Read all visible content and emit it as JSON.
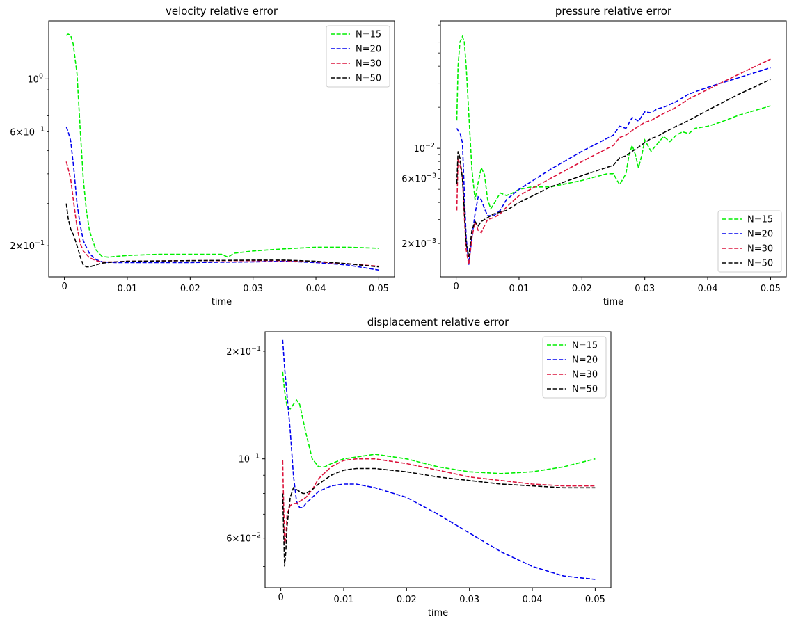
{
  "figure": {
    "title": "",
    "xlabel": "time"
  },
  "chart_data": [
    {
      "type": "line",
      "title": "velocity relative error",
      "xlabel": "time",
      "ylabel": "",
      "yscale": "log",
      "xlim": [
        -0.0025,
        0.0525
      ],
      "ylim": [
        0.148,
        1.75
      ],
      "legend_position": "top-right",
      "xticks": [
        0,
        0.01,
        0.02,
        0.03,
        0.04,
        0.05
      ],
      "xtick_labels": [
        "0",
        "0.01",
        "0.02",
        "0.03",
        "0.04",
        "0.05"
      ],
      "yticks_major": [
        1.0
      ],
      "yticks_major_labels": [
        "10^0"
      ],
      "yticks_minor": [
        0.2,
        0.3,
        0.4,
        0.5,
        0.6,
        0.7,
        0.8,
        0.9,
        2.0
      ],
      "yticks_minor_labels": {
        "0.2": "2×10^-1",
        "0.6": "6×10^-1"
      },
      "series": [
        {
          "name": "N=15",
          "color": "#00ee00",
          "x": [
            0.0003,
            0.0006,
            0.001,
            0.0014,
            0.002,
            0.0025,
            0.003,
            0.0035,
            0.004,
            0.005,
            0.006,
            0.007,
            0.008,
            0.01,
            0.015,
            0.02,
            0.025,
            0.026,
            0.027,
            0.03,
            0.035,
            0.04,
            0.045,
            0.05
          ],
          "y": [
            1.52,
            1.54,
            1.52,
            1.4,
            1.05,
            0.62,
            0.38,
            0.28,
            0.23,
            0.192,
            0.18,
            0.179,
            0.18,
            0.182,
            0.184,
            0.184,
            0.184,
            0.179,
            0.186,
            0.19,
            0.194,
            0.197,
            0.197,
            0.195
          ]
        },
        {
          "name": "N=20",
          "color": "#0000ee",
          "x": [
            0.0003,
            0.0006,
            0.001,
            0.0015,
            0.002,
            0.0025,
            0.003,
            0.004,
            0.005,
            0.006,
            0.008,
            0.01,
            0.02,
            0.03,
            0.035,
            0.04,
            0.045,
            0.05
          ],
          "y": [
            0.63,
            0.6,
            0.55,
            0.42,
            0.3,
            0.245,
            0.21,
            0.185,
            0.175,
            0.171,
            0.17,
            0.17,
            0.17,
            0.171,
            0.172,
            0.17,
            0.166,
            0.158
          ]
        },
        {
          "name": "N=30",
          "color": "#dc143c",
          "x": [
            0.0003,
            0.0006,
            0.001,
            0.0015,
            0.002,
            0.0025,
            0.003,
            0.004,
            0.005,
            0.006,
            0.008,
            0.01,
            0.02,
            0.03,
            0.035,
            0.04,
            0.045,
            0.05
          ],
          "y": [
            0.45,
            0.42,
            0.38,
            0.3,
            0.24,
            0.205,
            0.19,
            0.178,
            0.173,
            0.171,
            0.171,
            0.172,
            0.173,
            0.173,
            0.173,
            0.171,
            0.168,
            0.164
          ]
        },
        {
          "name": "N=50",
          "color": "#000000",
          "x": [
            0.0003,
            0.0006,
            0.001,
            0.0015,
            0.002,
            0.0025,
            0.003,
            0.0035,
            0.004,
            0.005,
            0.006,
            0.008,
            0.01,
            0.02,
            0.03,
            0.035,
            0.04,
            0.045,
            0.05
          ],
          "y": [
            0.3,
            0.26,
            0.235,
            0.22,
            0.2,
            0.18,
            0.166,
            0.163,
            0.163,
            0.166,
            0.169,
            0.171,
            0.172,
            0.173,
            0.174,
            0.174,
            0.172,
            0.168,
            0.163
          ]
        }
      ]
    },
    {
      "type": "line",
      "title": "pressure relative error",
      "xlabel": "time",
      "ylabel": "",
      "yscale": "log",
      "xlim": [
        -0.0025,
        0.0525
      ],
      "ylim": [
        0.00114,
        0.086
      ],
      "legend_position": "bottom-right",
      "xticks": [
        0,
        0.01,
        0.02,
        0.03,
        0.04,
        0.05
      ],
      "xtick_labels": [
        "0",
        "0.01",
        "0.02",
        "0.03",
        "0.04",
        "0.05"
      ],
      "yticks_major": [
        0.01
      ],
      "yticks_major_labels": [
        "10^-2"
      ],
      "yticks_minor": [
        0.002,
        0.003,
        0.004,
        0.005,
        0.006,
        0.007,
        0.008,
        0.009,
        0.02,
        0.03,
        0.04,
        0.05,
        0.06,
        0.07,
        0.08
      ],
      "yticks_minor_labels": {
        "0.002": "2×10^-3",
        "0.006": "6×10^-3"
      },
      "series": [
        {
          "name": "N=15",
          "color": "#00ee00",
          "x": [
            0.0001,
            0.0003,
            0.0006,
            0.001,
            0.0013,
            0.0016,
            0.002,
            0.0025,
            0.003,
            0.0035,
            0.004,
            0.0045,
            0.005,
            0.0055,
            0.006,
            0.007,
            0.008,
            0.009,
            0.01,
            0.012,
            0.015,
            0.02,
            0.024,
            0.025,
            0.026,
            0.027,
            0.0275,
            0.028,
            0.0285,
            0.029,
            0.0295,
            0.03,
            0.031,
            0.032,
            0.033,
            0.034,
            0.035,
            0.036,
            0.037,
            0.038,
            0.04,
            0.042,
            0.045,
            0.05
          ],
          "y": [
            0.016,
            0.04,
            0.06,
            0.066,
            0.06,
            0.04,
            0.018,
            0.007,
            0.0042,
            0.0056,
            0.0072,
            0.0064,
            0.0042,
            0.0036,
            0.0039,
            0.0047,
            0.0045,
            0.0047,
            0.005,
            0.0052,
            0.0052,
            0.0058,
            0.0065,
            0.0065,
            0.0054,
            0.0065,
            0.009,
            0.0105,
            0.009,
            0.0072,
            0.0088,
            0.0115,
            0.0095,
            0.0108,
            0.0122,
            0.0112,
            0.0125,
            0.0132,
            0.0128,
            0.014,
            0.0145,
            0.0155,
            0.0175,
            0.0205
          ]
        },
        {
          "name": "N=20",
          "color": "#0000ee",
          "x": [
            0.0001,
            0.0003,
            0.0006,
            0.001,
            0.0013,
            0.0016,
            0.002,
            0.0025,
            0.003,
            0.0035,
            0.004,
            0.0045,
            0.005,
            0.006,
            0.007,
            0.008,
            0.01,
            0.015,
            0.02,
            0.025,
            0.026,
            0.027,
            0.028,
            0.029,
            0.03,
            0.031,
            0.032,
            0.033,
            0.035,
            0.037,
            0.04,
            0.045,
            0.05
          ],
          "y": [
            0.014,
            0.0135,
            0.013,
            0.011,
            0.0048,
            0.0022,
            0.0014,
            0.0022,
            0.0033,
            0.0044,
            0.0042,
            0.0036,
            0.0032,
            0.0032,
            0.0035,
            0.0042,
            0.005,
            0.007,
            0.0095,
            0.0125,
            0.0145,
            0.014,
            0.0168,
            0.0158,
            0.0185,
            0.0182,
            0.0195,
            0.02,
            0.022,
            0.025,
            0.028,
            0.033,
            0.039
          ]
        },
        {
          "name": "N=30",
          "color": "#dc143c",
          "x": [
            0.0001,
            0.0003,
            0.0006,
            0.001,
            0.0013,
            0.0016,
            0.002,
            0.0025,
            0.003,
            0.0035,
            0.004,
            0.0045,
            0.005,
            0.006,
            0.007,
            0.008,
            0.01,
            0.015,
            0.02,
            0.025,
            0.026,
            0.027,
            0.028,
            0.029,
            0.03,
            0.031,
            0.032,
            0.033,
            0.035,
            0.037,
            0.04,
            0.045,
            0.05
          ],
          "y": [
            0.0035,
            0.0085,
            0.0075,
            0.0062,
            0.0032,
            0.0018,
            0.0014,
            0.0022,
            0.0029,
            0.0025,
            0.0024,
            0.0027,
            0.003,
            0.0031,
            0.0033,
            0.0037,
            0.0045,
            0.006,
            0.008,
            0.0105,
            0.012,
            0.0125,
            0.0135,
            0.0145,
            0.0155,
            0.016,
            0.017,
            0.018,
            0.02,
            0.023,
            0.027,
            0.035,
            0.045
          ]
        },
        {
          "name": "N=50",
          "color": "#000000",
          "x": [
            0.0001,
            0.0003,
            0.0006,
            0.001,
            0.0013,
            0.0016,
            0.002,
            0.0025,
            0.003,
            0.0035,
            0.004,
            0.005,
            0.006,
            0.008,
            0.01,
            0.015,
            0.02,
            0.025,
            0.026,
            0.027,
            0.028,
            0.029,
            0.03,
            0.031,
            0.032,
            0.033,
            0.035,
            0.037,
            0.04,
            0.045,
            0.05
          ],
          "y": [
            0.0055,
            0.0095,
            0.0085,
            0.006,
            0.0035,
            0.002,
            0.0016,
            0.0025,
            0.0029,
            0.0027,
            0.0029,
            0.0031,
            0.0033,
            0.0035,
            0.004,
            0.0052,
            0.0063,
            0.0075,
            0.0085,
            0.0088,
            0.0095,
            0.0102,
            0.011,
            0.0118,
            0.0122,
            0.013,
            0.0145,
            0.016,
            0.019,
            0.025,
            0.032
          ]
        }
      ]
    },
    {
      "type": "line",
      "title": "displacement relative error",
      "xlabel": "time",
      "ylabel": "",
      "yscale": "log",
      "xlim": [
        -0.0025,
        0.0525
      ],
      "ylim": [
        0.0436,
        0.2267
      ],
      "legend_position": "top-right",
      "xticks": [
        0,
        0.01,
        0.02,
        0.03,
        0.04,
        0.05
      ],
      "xtick_labels": [
        "0",
        "0.01",
        "0.02",
        "0.03",
        "0.04",
        "0.05"
      ],
      "yticks_major": [
        0.1
      ],
      "yticks_major_labels": [
        "10^-1"
      ],
      "yticks_minor": [
        0.05,
        0.06,
        0.07,
        0.08,
        0.09,
        0.2
      ],
      "yticks_minor_labels": {
        "0.06": "6×10^-2",
        "0.2": "2×10^-1"
      },
      "series": [
        {
          "name": "N=15",
          "color": "#00ee00",
          "x": [
            0.0003,
            0.0006,
            0.001,
            0.0015,
            0.002,
            0.0025,
            0.003,
            0.004,
            0.005,
            0.006,
            0.007,
            0.008,
            0.01,
            0.015,
            0.02,
            0.025,
            0.03,
            0.035,
            0.04,
            0.045,
            0.05
          ],
          "y": [
            0.175,
            0.155,
            0.14,
            0.138,
            0.142,
            0.146,
            0.142,
            0.118,
            0.1,
            0.095,
            0.095,
            0.097,
            0.1,
            0.103,
            0.1,
            0.095,
            0.092,
            0.091,
            0.092,
            0.095,
            0.1
          ]
        },
        {
          "name": "N=20",
          "color": "#0000ee",
          "x": [
            0.0003,
            0.0006,
            0.001,
            0.0015,
            0.002,
            0.0025,
            0.003,
            0.0035,
            0.004,
            0.005,
            0.006,
            0.008,
            0.01,
            0.012,
            0.015,
            0.02,
            0.025,
            0.03,
            0.035,
            0.04,
            0.045,
            0.05
          ],
          "y": [
            0.215,
            0.18,
            0.15,
            0.12,
            0.09,
            0.076,
            0.073,
            0.073,
            0.075,
            0.078,
            0.081,
            0.084,
            0.085,
            0.085,
            0.083,
            0.078,
            0.07,
            0.062,
            0.055,
            0.05,
            0.047,
            0.046
          ]
        },
        {
          "name": "N=30",
          "color": "#dc143c",
          "x": [
            0.0003,
            0.0004,
            0.0006,
            0.0008,
            0.001,
            0.0015,
            0.002,
            0.0025,
            0.003,
            0.004,
            0.005,
            0.006,
            0.008,
            0.01,
            0.012,
            0.015,
            0.02,
            0.025,
            0.03,
            0.035,
            0.04,
            0.045,
            0.05
          ],
          "y": [
            0.099,
            0.082,
            0.058,
            0.06,
            0.07,
            0.074,
            0.075,
            0.075,
            0.076,
            0.078,
            0.082,
            0.088,
            0.095,
            0.099,
            0.1,
            0.1,
            0.097,
            0.093,
            0.089,
            0.087,
            0.085,
            0.084,
            0.084
          ]
        },
        {
          "name": "N=50",
          "color": "#000000",
          "x": [
            0.0003,
            0.0004,
            0.0006,
            0.0008,
            0.001,
            0.0015,
            0.002,
            0.0025,
            0.003,
            0.0035,
            0.004,
            0.005,
            0.006,
            0.008,
            0.01,
            0.012,
            0.015,
            0.02,
            0.025,
            0.03,
            0.035,
            0.04,
            0.045,
            0.05
          ],
          "y": [
            0.08,
            0.068,
            0.05,
            0.055,
            0.065,
            0.078,
            0.083,
            0.082,
            0.081,
            0.08,
            0.08,
            0.082,
            0.085,
            0.09,
            0.093,
            0.094,
            0.094,
            0.092,
            0.089,
            0.087,
            0.085,
            0.084,
            0.083,
            0.083
          ]
        }
      ]
    }
  ]
}
